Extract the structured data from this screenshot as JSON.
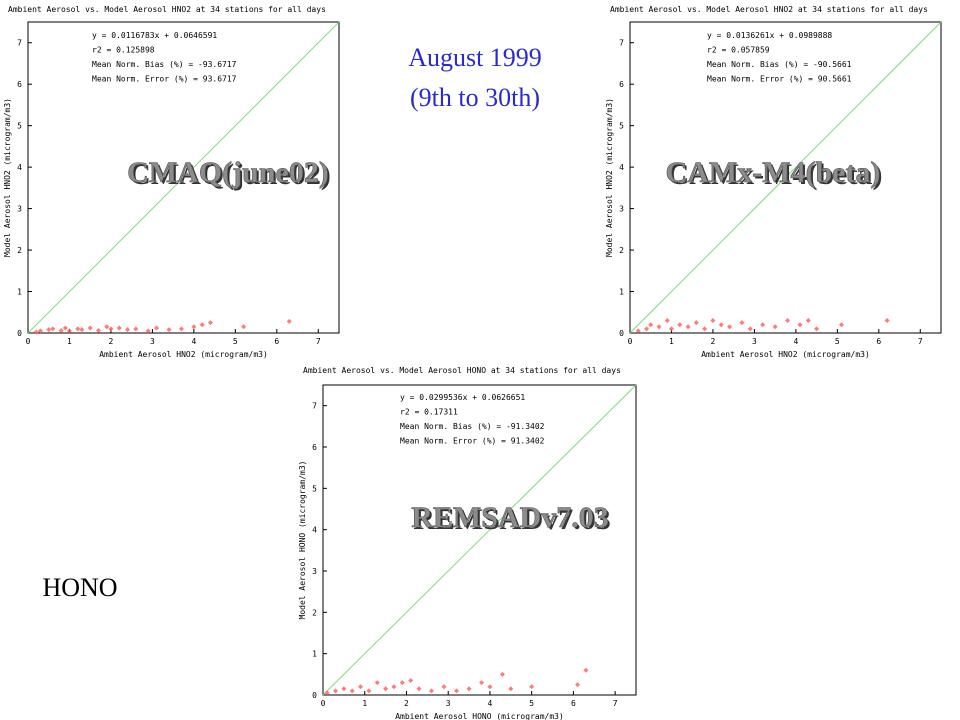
{
  "slide": {
    "period_lines": [
      "August 1999",
      "(9th to 30th)"
    ],
    "species": "HONO"
  },
  "chart_data": [
    {
      "type": "scatter",
      "title": "Ambient Aerosol vs. Model Aerosol  HNO2 at 34 stations for all days",
      "xlabel": "Ambient Aerosol  HNO2 (microgram/m3)",
      "ylabel": "Model Aerosol  HNO2 (microgram/m3)",
      "stats": [
        "y = 0.0116783x + 0.0646591",
        "r2 = 0.125898",
        "Mean Norm. Bias (%) = -93.6717",
        "Mean Norm. Error (%) = 93.6717"
      ],
      "model": "CMAQ(june02)",
      "x": [
        0.2,
        0.3,
        0.5,
        0.6,
        0.8,
        0.9,
        1.0,
        1.2,
        1.3,
        1.5,
        1.7,
        1.9,
        2.0,
        2.2,
        2.4,
        2.6,
        2.9,
        3.1,
        3.4,
        3.7,
        4.0,
        4.2,
        4.4,
        5.2,
        6.3
      ],
      "y": [
        0.02,
        0.05,
        0.08,
        0.1,
        0.06,
        0.12,
        0.05,
        0.1,
        0.08,
        0.12,
        0.06,
        0.15,
        0.1,
        0.12,
        0.08,
        0.1,
        0.05,
        0.12,
        0.08,
        0.1,
        0.15,
        0.2,
        0.25,
        0.15,
        0.28
      ],
      "color": "#ff5a5a",
      "identity_line": true,
      "identity_color": "#7fdc7f",
      "xlim": [
        0,
        7.5
      ],
      "ylim": [
        0,
        7.5
      ],
      "xticks": [
        0,
        1,
        2,
        3,
        4,
        5,
        6,
        7
      ],
      "yticks": [
        0,
        1,
        2,
        3,
        4,
        5,
        6,
        7
      ]
    },
    {
      "type": "scatter",
      "title": "Ambient Aerosol vs. Model Aerosol  HNO2 at 34 stations for all days",
      "xlabel": "Ambient Aerosol  HNO2 (microgram/m3)",
      "ylabel": "Model Aerosol  HNO2 (microgram/m3)",
      "stats": [
        "y = 0.0136261x + 0.0989888",
        "r2 = 0.057859",
        "Mean Norm. Bias (%) = -90.5661",
        "Mean Norm. Error (%) = 90.5661"
      ],
      "model": "CAMx-M4(beta)",
      "x": [
        0.2,
        0.4,
        0.5,
        0.7,
        0.9,
        1.0,
        1.2,
        1.4,
        1.6,
        1.8,
        2.0,
        2.2,
        2.4,
        2.7,
        2.9,
        3.2,
        3.5,
        3.8,
        4.1,
        4.3,
        4.5,
        5.1,
        6.2
      ],
      "y": [
        0.05,
        0.1,
        0.2,
        0.15,
        0.3,
        0.1,
        0.2,
        0.15,
        0.25,
        0.1,
        0.3,
        0.2,
        0.15,
        0.25,
        0.1,
        0.2,
        0.15,
        0.3,
        0.2,
        0.3,
        0.1,
        0.2,
        0.3
      ],
      "color": "#ff5a5a",
      "identity_line": true,
      "identity_color": "#7fdc7f",
      "xlim": [
        0,
        7.5
      ],
      "ylim": [
        0,
        7.5
      ],
      "xticks": [
        0,
        1,
        2,
        3,
        4,
        5,
        6,
        7
      ],
      "yticks": [
        0,
        1,
        2,
        3,
        4,
        5,
        6,
        7
      ]
    },
    {
      "type": "scatter",
      "title": "Ambient Aerosol vs. Model Aerosol  HONO at 34 stations for all days",
      "xlabel": "Ambient Aerosol  HONO (microgram/m3)",
      "ylabel": "Model Aerosol  HONO (microgram/m3)",
      "stats": [
        "y = 0.0299536x + 0.0626651",
        "r2 = 0.17311",
        "Mean Norm. Bias (%) = -91.3402",
        "Mean Norm. Error (%) = 91.3402"
      ],
      "model": "REMSADv7.03",
      "x": [
        0.1,
        0.3,
        0.5,
        0.7,
        0.9,
        1.1,
        1.3,
        1.5,
        1.7,
        1.9,
        2.1,
        2.3,
        2.6,
        2.9,
        3.2,
        3.5,
        3.8,
        4.0,
        4.3,
        4.5,
        5.0,
        6.1,
        6.3
      ],
      "y": [
        0.05,
        0.1,
        0.15,
        0.1,
        0.2,
        0.1,
        0.3,
        0.15,
        0.2,
        0.3,
        0.35,
        0.15,
        0.1,
        0.2,
        0.1,
        0.15,
        0.3,
        0.2,
        0.5,
        0.15,
        0.2,
        0.25,
        0.6
      ],
      "color": "#ff5a5a",
      "identity_line": true,
      "identity_color": "#7fdc7f",
      "xlim": [
        0,
        7.5
      ],
      "ylim": [
        0,
        7.5
      ],
      "xticks": [
        0,
        1,
        2,
        3,
        4,
        5,
        6,
        7
      ],
      "yticks": [
        0,
        1,
        2,
        3,
        4,
        5,
        6,
        7
      ]
    }
  ]
}
